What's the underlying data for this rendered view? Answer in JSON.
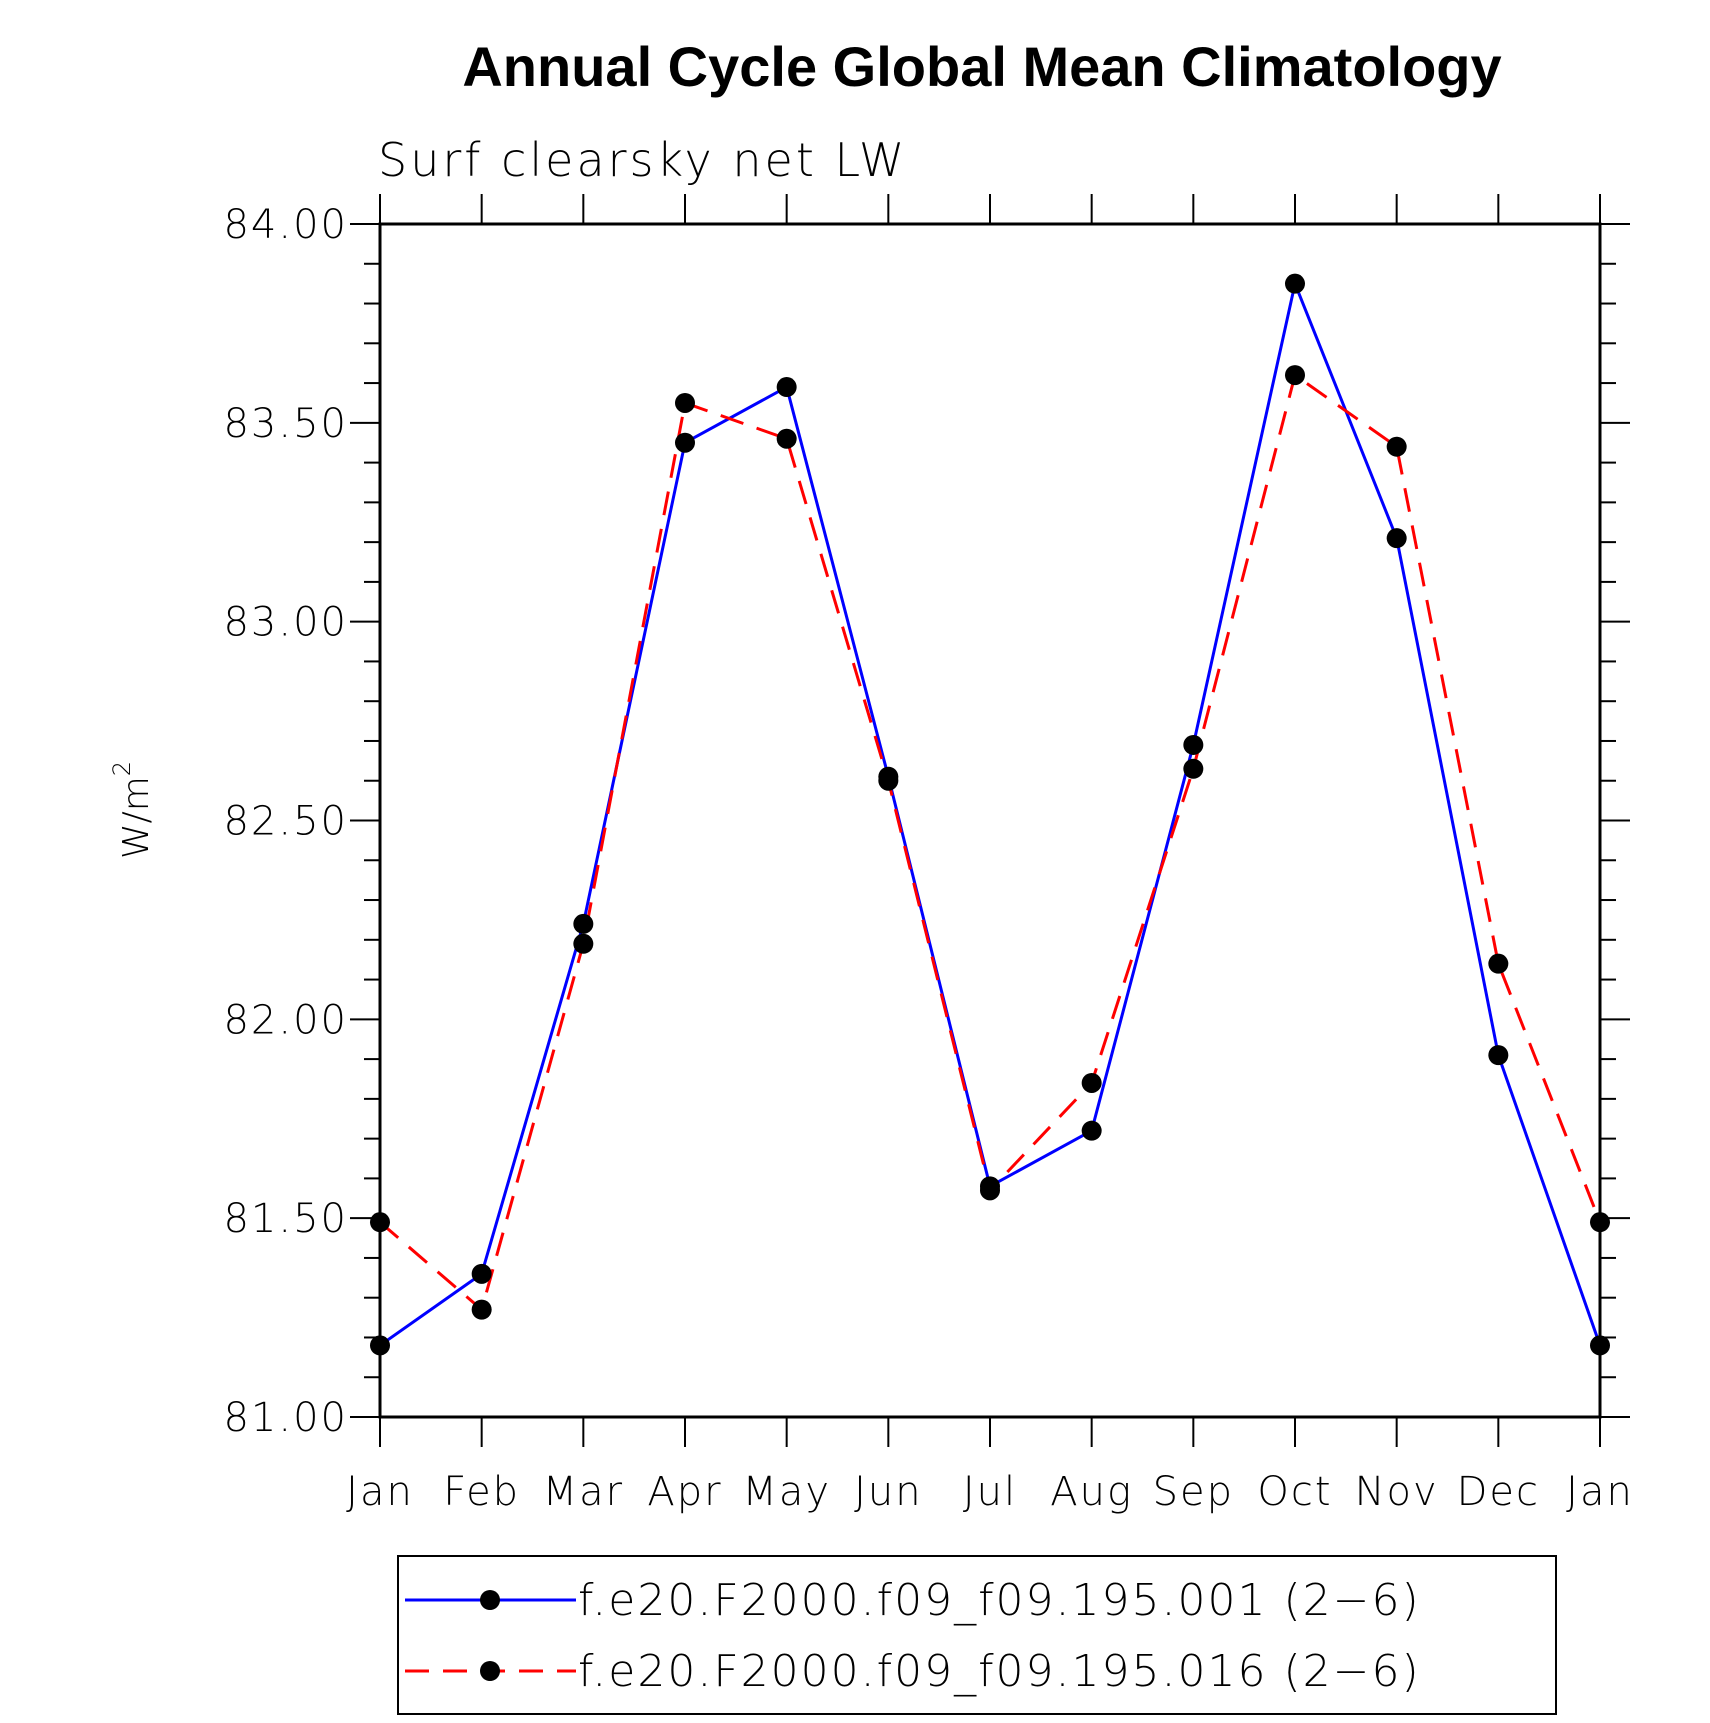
{
  "chart_data": {
    "type": "line",
    "title": "Annual Cycle Global Mean Climatology",
    "subtitle": "Surf clearsky net LW",
    "xlabel": "",
    "ylabel": "W/m",
    "ylabel_superscript": "2",
    "categories": [
      "Jan",
      "Feb",
      "Mar",
      "Apr",
      "May",
      "Jun",
      "Jul",
      "Aug",
      "Sep",
      "Oct",
      "Nov",
      "Dec",
      "Jan"
    ],
    "ylim": [
      81.0,
      84.0
    ],
    "yticks": [
      "81.00",
      "81.50",
      "82.00",
      "82.50",
      "83.00",
      "83.50",
      "84.00"
    ],
    "grid": false,
    "legend_position": "bottom",
    "series": [
      {
        "name": "f.e20.F2000.f09_f09.195.001 (2−6)",
        "color": "#0000ff",
        "line_style": "solid",
        "marker": "filled-circle",
        "values": [
          81.18,
          81.36,
          82.24,
          83.45,
          83.59,
          82.61,
          81.58,
          81.72,
          82.69,
          83.85,
          83.21,
          81.91,
          81.18
        ]
      },
      {
        "name": "f.e20.F2000.f09_f09.195.016 (2−6)",
        "color": "#ff0000",
        "line_style": "dashed",
        "marker": "filled-circle",
        "values": [
          81.49,
          81.27,
          82.19,
          83.55,
          83.46,
          82.6,
          81.57,
          81.84,
          82.63,
          83.62,
          83.44,
          82.14,
          81.49
        ]
      }
    ]
  }
}
